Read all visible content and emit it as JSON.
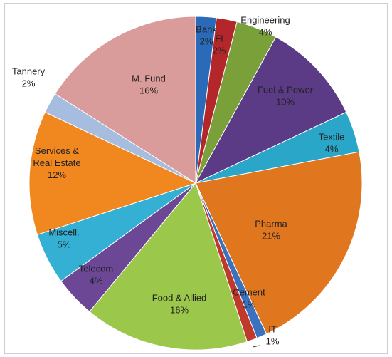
{
  "chart_data": {
    "type": "pie",
    "title": "",
    "slices": [
      {
        "label": "Bank",
        "value": 2,
        "display": "2%",
        "color": "#2a6ab8"
      },
      {
        "label": "FI",
        "value": 2,
        "display": "2%",
        "color": "#b3272b"
      },
      {
        "label": "Engineering",
        "value": 4,
        "display": "4%",
        "color": "#7aa03a"
      },
      {
        "label": "Fuel & Power",
        "value": 10,
        "display": "10%",
        "color": "#5b3a86"
      },
      {
        "label": "Textile",
        "value": 4,
        "display": "4%",
        "color": "#2aa6c8"
      },
      {
        "label": "Pharma",
        "value": 21,
        "display": "21%",
        "color": "#e0761e"
      },
      {
        "label": "IT",
        "value": 1,
        "display": "1%",
        "color": "#3b72c0"
      },
      {
        "label": "Cement",
        "value": 1,
        "display": "1%",
        "color": "#c0392b"
      },
      {
        "label": "Food & Allied",
        "value": 16,
        "display": "16%",
        "color": "#9bc74a"
      },
      {
        "label": "Telecom",
        "value": 4,
        "display": "4%",
        "color": "#6b4795"
      },
      {
        "label": "Miscell.",
        "value": 5,
        "display": "5%",
        "color": "#33b0d3"
      },
      {
        "label": "Services & Real Estate",
        "value": 12,
        "display": "12%",
        "color": "#f0871f"
      },
      {
        "label": "Tannery",
        "value": 2,
        "display": "2%",
        "color": "#a6bde0"
      },
      {
        "label": "M. Fund",
        "value": 16,
        "display": "16%",
        "color": "#d99c9a"
      }
    ]
  }
}
